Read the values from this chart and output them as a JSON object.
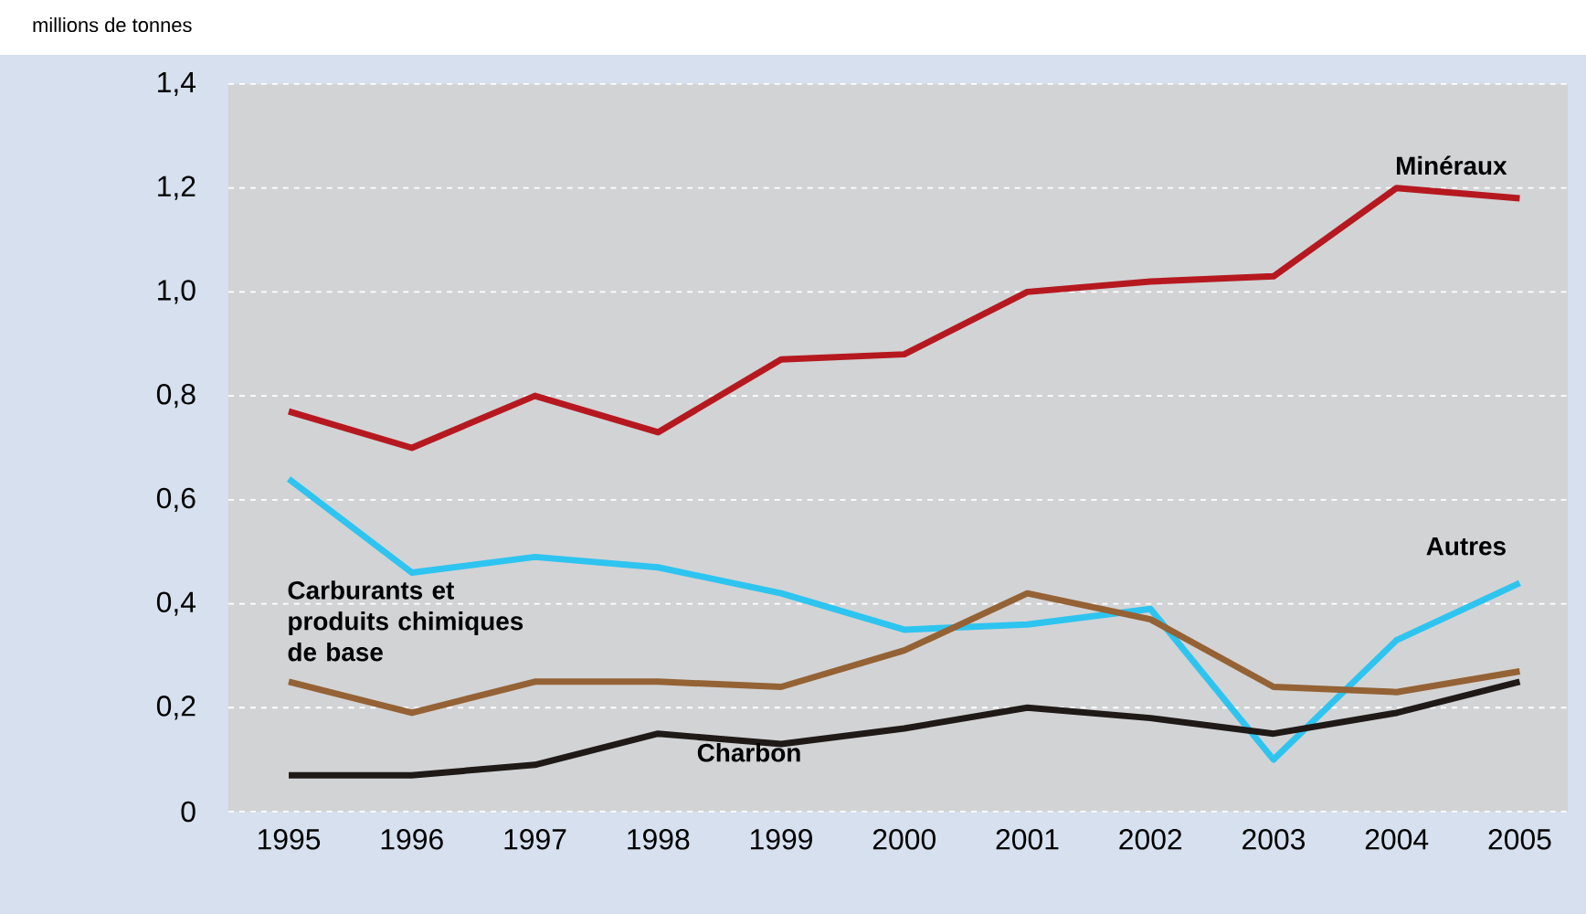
{
  "chart_data": {
    "type": "line",
    "ylabel": "millions de tonnes",
    "categories": [
      "1995",
      "1996",
      "1997",
      "1998",
      "1999",
      "2000",
      "2001",
      "2002",
      "2003",
      "2004",
      "2005"
    ],
    "series": [
      {
        "name": "Minéraux",
        "color": "#b5191f",
        "values": [
          0.77,
          0.7,
          0.8,
          0.73,
          0.87,
          0.88,
          1.0,
          1.02,
          1.03,
          1.2,
          1.18
        ]
      },
      {
        "name": "Autres",
        "color": "#2ec4f0",
        "values": [
          0.64,
          0.46,
          0.49,
          0.47,
          0.42,
          0.35,
          0.36,
          0.39,
          0.1,
          0.33,
          0.44
        ]
      },
      {
        "name": "Carburants et produits chimiques de base",
        "color": "#946234",
        "values": [
          0.25,
          0.19,
          0.25,
          0.25,
          0.24,
          0.31,
          0.42,
          0.37,
          0.24,
          0.23,
          0.27
        ]
      },
      {
        "name": "Charbon",
        "color": "#1f1a17",
        "values": [
          0.07,
          0.07,
          0.09,
          0.15,
          0.13,
          0.16,
          0.2,
          0.18,
          0.15,
          0.19,
          0.25
        ]
      }
    ],
    "ylim": [
      0,
      1.4
    ],
    "yticks": [
      {
        "value": 0,
        "label": "0"
      },
      {
        "value": 0.2,
        "label": "0,2"
      },
      {
        "value": 0.4,
        "label": "0,4"
      },
      {
        "value": 0.6,
        "label": "0,6"
      },
      {
        "value": 0.8,
        "label": "0,8"
      },
      {
        "value": 1.0,
        "label": "1,0"
      },
      {
        "value": 1.2,
        "label": "1,2"
      },
      {
        "value": 1.4,
        "label": "1,4"
      }
    ],
    "grid": "y",
    "marker": "none",
    "line_style": "solid",
    "legend": false
  }
}
